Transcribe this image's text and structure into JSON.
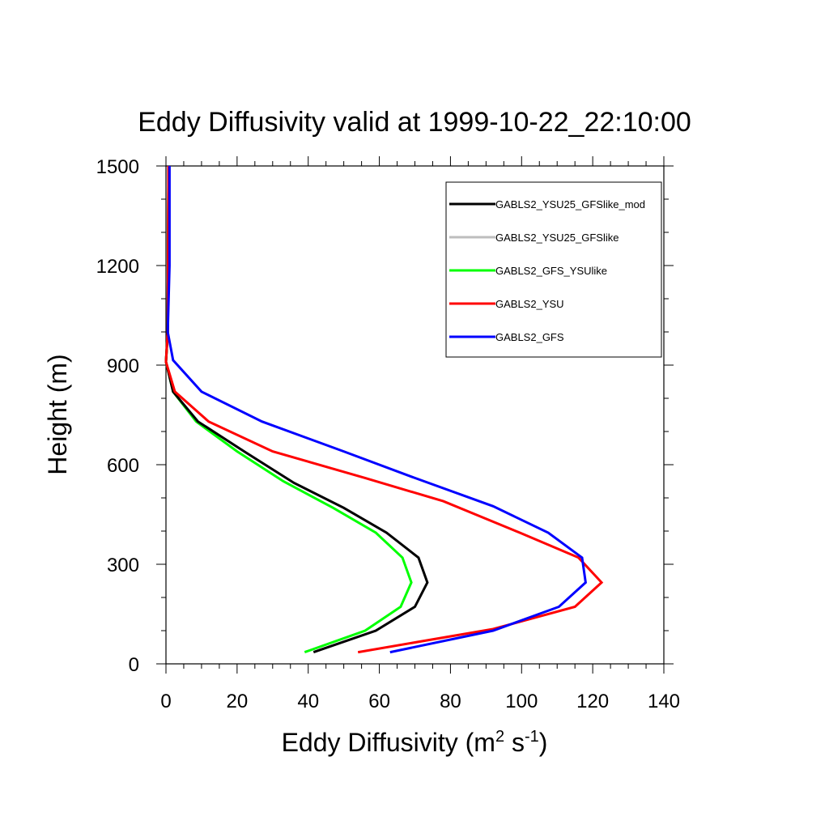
{
  "chart_data": {
    "type": "line",
    "title": "Eddy Diffusivity valid at 1999-10-22_22:10:00",
    "xlabel": {
      "main": "Eddy Diffusivity (m",
      "sup1": "2",
      "mid": " s",
      "sup2": "-1",
      "end": ")"
    },
    "ylabel": "Height (m)",
    "xlim": [
      0,
      140
    ],
    "ylim": [
      0,
      1500
    ],
    "xticks": [
      0,
      20,
      40,
      60,
      80,
      100,
      120,
      140
    ],
    "yticks": [
      0,
      300,
      600,
      900,
      1200,
      1500
    ],
    "legend_position": "top-right",
    "series": [
      {
        "name": "GABLS2_YSU25_GFSlike_mod",
        "color": "#000000",
        "points": [
          [
            41.5,
            35
          ],
          [
            59,
            100
          ],
          [
            70,
            172
          ],
          [
            73.5,
            245
          ],
          [
            71,
            320
          ],
          [
            62,
            395
          ],
          [
            50,
            470
          ],
          [
            36,
            545
          ],
          [
            22,
            640
          ],
          [
            9,
            730
          ],
          [
            2,
            820
          ],
          [
            0,
            910
          ],
          [
            0.5,
            1000
          ],
          [
            0.6,
            1200
          ],
          [
            0.7,
            1500
          ]
        ]
      },
      {
        "name": "GABLS2_YSU25_GFSlike",
        "color": "#bebebe",
        "points": [
          [
            41.5,
            35
          ],
          [
            59,
            100
          ],
          [
            70,
            172
          ],
          [
            73.5,
            245
          ],
          [
            71,
            320
          ],
          [
            62,
            395
          ],
          [
            50,
            470
          ],
          [
            36,
            545
          ],
          [
            22,
            640
          ],
          [
            9,
            730
          ],
          [
            2,
            820
          ],
          [
            0,
            910
          ],
          [
            0.5,
            1000
          ],
          [
            0.6,
            1200
          ],
          [
            0.7,
            1500
          ]
        ]
      },
      {
        "name": "GABLS2_GFS_YSUlike",
        "color": "#00ff00",
        "points": [
          [
            39,
            35
          ],
          [
            56,
            100
          ],
          [
            66,
            172
          ],
          [
            69,
            245
          ],
          [
            66.5,
            320
          ],
          [
            59,
            395
          ],
          [
            47,
            470
          ],
          [
            33,
            550
          ],
          [
            20,
            640
          ],
          [
            8.5,
            730
          ],
          [
            2,
            820
          ],
          [
            0,
            910
          ],
          [
            0.5,
            1000
          ],
          [
            0.6,
            1200
          ],
          [
            0.7,
            1500
          ]
        ]
      },
      {
        "name": "GABLS2_YSU",
        "color": "#ff0000",
        "points": [
          [
            54,
            35
          ],
          [
            92,
            105
          ],
          [
            115,
            172
          ],
          [
            122.5,
            245
          ],
          [
            116,
            320
          ],
          [
            99.5,
            395
          ],
          [
            78,
            490
          ],
          [
            56,
            560
          ],
          [
            30,
            640
          ],
          [
            12,
            730
          ],
          [
            2.5,
            820
          ],
          [
            0,
            910
          ],
          [
            0.5,
            1000
          ],
          [
            0.6,
            1200
          ],
          [
            0.7,
            1500
          ]
        ]
      },
      {
        "name": "GABLS2_GFS",
        "color": "#0000ff",
        "points": [
          [
            63,
            35
          ],
          [
            92,
            100
          ],
          [
            110.5,
            172
          ],
          [
            118,
            245
          ],
          [
            117,
            320
          ],
          [
            107.5,
            395
          ],
          [
            92,
            475
          ],
          [
            70,
            560
          ],
          [
            50,
            640
          ],
          [
            27,
            730
          ],
          [
            10,
            820
          ],
          [
            2,
            915
          ],
          [
            0.5,
            1000
          ],
          [
            1,
            1200
          ],
          [
            1,
            1500
          ]
        ]
      }
    ]
  }
}
